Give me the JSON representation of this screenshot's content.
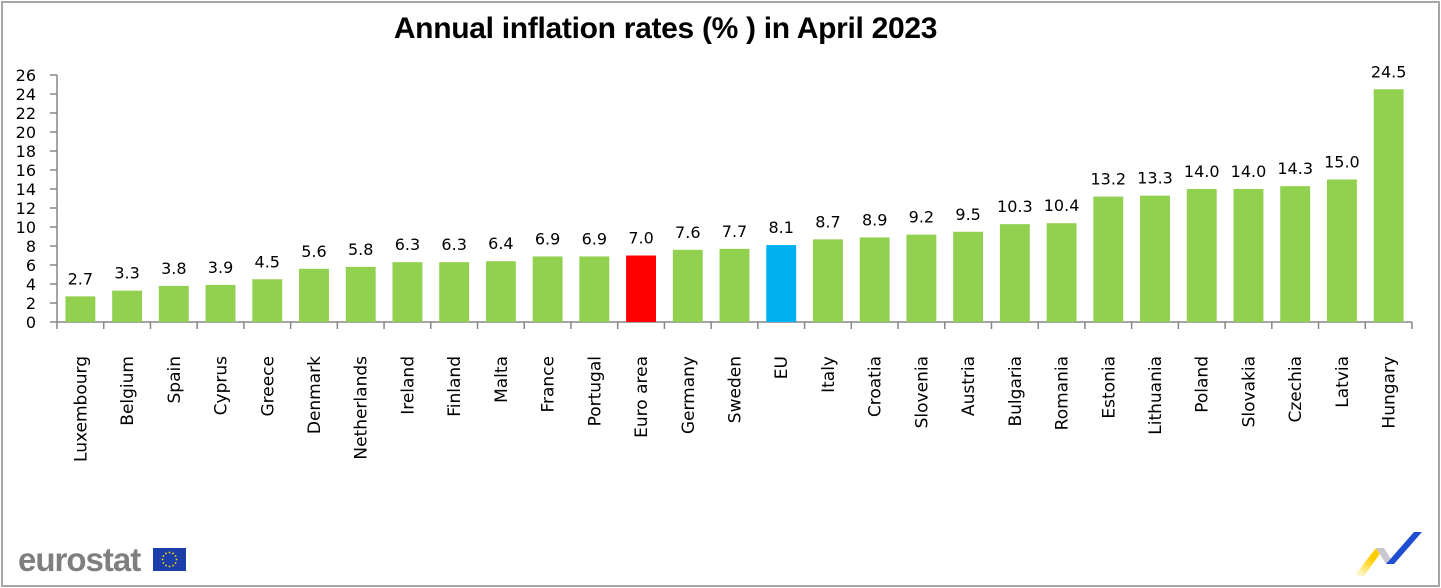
{
  "chart_data": {
    "type": "bar",
    "title": "Annual inflation rates (% ) in April 2023",
    "xlabel": "",
    "ylabel": "",
    "ylim": [
      0,
      26
    ],
    "yticks": [
      0,
      2,
      4,
      6,
      8,
      10,
      12,
      14,
      16,
      18,
      20,
      22,
      24,
      26
    ],
    "grid": false,
    "legend": "none",
    "categories": [
      "Luxembourg",
      "Belgium",
      "Spain",
      "Cyprus",
      "Greece",
      "Denmark",
      "Netherlands",
      "Ireland",
      "Finland",
      "Malta",
      "France",
      "Portugal",
      "Euro area",
      "Germany",
      "Sweden",
      "EU",
      "Italy",
      "Croatia",
      "Slovenia",
      "Austria",
      "Bulgaria",
      "Romania",
      "Estonia",
      "Lithuania",
      "Poland",
      "Slovakia",
      "Czechia",
      "Latvia",
      "Hungary"
    ],
    "values": [
      2.7,
      3.3,
      3.8,
      3.9,
      4.5,
      5.6,
      5.8,
      6.3,
      6.3,
      6.4,
      6.9,
      6.9,
      7.0,
      7.6,
      7.7,
      8.1,
      8.7,
      8.9,
      9.2,
      9.5,
      10.3,
      10.4,
      13.2,
      13.3,
      14.0,
      14.0,
      14.3,
      15.0,
      24.5
    ],
    "data_labels": [
      "2.7",
      "3.3",
      "3.8",
      "3.9",
      "4.5",
      "5.6",
      "5.8",
      "6.3",
      "6.3",
      "6.4",
      "6.9",
      "6.9",
      "7.0",
      "7.6",
      "7.7",
      "8.1",
      "8.7",
      "8.9",
      "9.2",
      "9.5",
      "10.3",
      "10.4",
      "13.2",
      "13.3",
      "14.0",
      "14.0",
      "14.3",
      "15.0",
      "24.5"
    ],
    "colors": {
      "default": "#92d050",
      "highlight": {
        "Euro area": "#ff0000",
        "EU": "#00b0f0"
      },
      "axis": "#868686"
    }
  },
  "branding": {
    "logo_text": "eurostat",
    "flag_color": "#1b3ea8",
    "flag_star_color": "#ffdd00"
  }
}
